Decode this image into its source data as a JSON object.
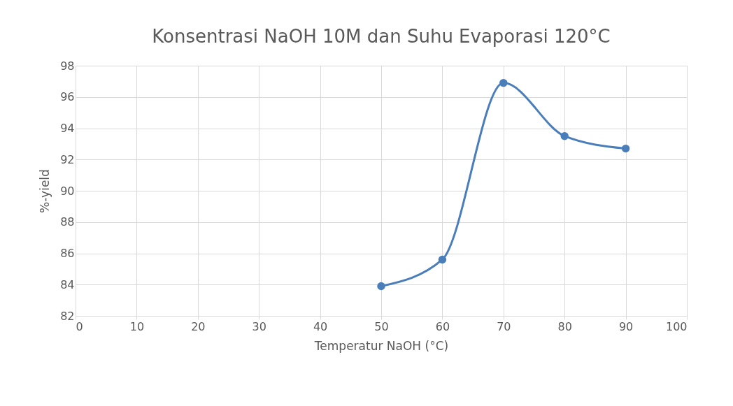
{
  "chart_data": {
    "type": "line",
    "title": "Konsentrasi NaOH 10M dan Suhu Evaporasi 120°C",
    "xlabel": "Temperatur NaOH (°C)",
    "ylabel": "%-yield",
    "x": [
      50,
      60,
      70,
      80,
      90
    ],
    "series": [
      {
        "color": "#4a7ebb",
        "values": [
          83.9,
          85.6,
          96.9,
          93.5,
          92.7
        ]
      }
    ],
    "xlim": [
      0,
      100
    ],
    "xticks": [
      0,
      10,
      20,
      30,
      40,
      50,
      60,
      70,
      80,
      90,
      100
    ],
    "ylim": [
      82,
      98
    ],
    "yticks": [
      82,
      84,
      86,
      88,
      90,
      92,
      94,
      96,
      98
    ],
    "grid": true,
    "marker": "circle",
    "line_style": "solid"
  }
}
